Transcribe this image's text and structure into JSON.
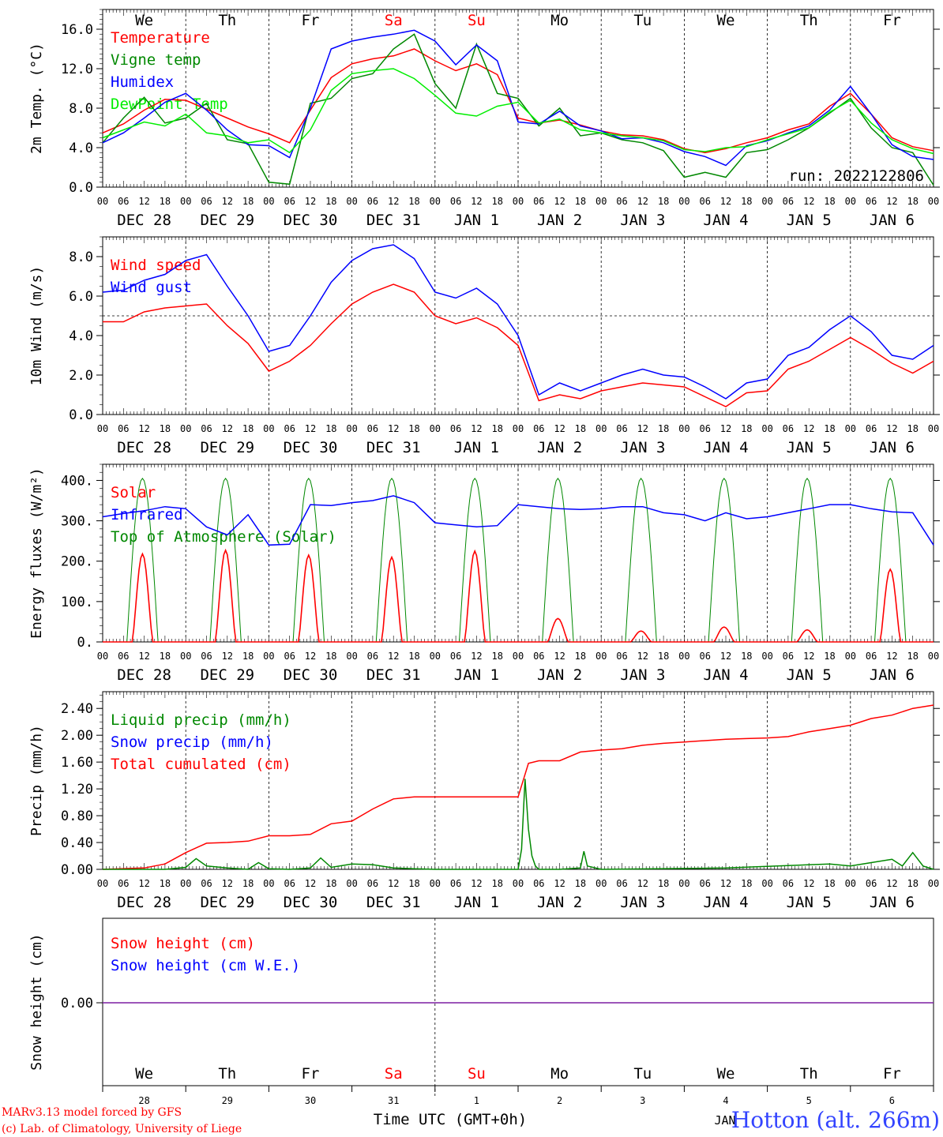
{
  "chart_data": [
    {
      "type": "line",
      "ylabel": "2m Temp. (°C)",
      "yticks": [
        "16.0",
        "12.0",
        "8.0",
        "4.0",
        "0.0"
      ],
      "ylim": [
        0,
        18
      ],
      "xlim": [
        0,
        240
      ],
      "x_unit": "hours since 2022-12-28 00 UTC",
      "day_names": [
        "We",
        "Th",
        "Fr",
        "Sa",
        "Su",
        "Mo",
        "Tu",
        "We",
        "Th",
        "Fr"
      ],
      "day_name_colors": [
        "#000000",
        "#000000",
        "#000000",
        "#ff0000",
        "#ff0000",
        "#000000",
        "#000000",
        "#000000",
        "#000000",
        "#000000"
      ],
      "date_labels": [
        "DEC 28",
        "DEC 29",
        "DEC 30",
        "DEC 31",
        "JAN  1",
        "JAN  2",
        "JAN  3",
        "JAN  4",
        "JAN  5",
        "JAN  6"
      ],
      "hour_labels": [
        "00",
        "06",
        "12",
        "18"
      ],
      "annotation": "run: 2022122806",
      "legend": [
        {
          "label": "Temperature",
          "color": "#ff0000"
        },
        {
          "label": "Vigne temp",
          "color": "#008800"
        },
        {
          "label": "Humidex",
          "color": "#0000ff"
        },
        {
          "label": "DewPoint Temp",
          "color": "#00ee00"
        }
      ],
      "series": [
        {
          "name": "Temperature",
          "color": "#ff0000",
          "x": [
            0,
            6,
            12,
            18,
            24,
            30,
            36,
            42,
            48,
            54,
            60,
            66,
            72,
            78,
            84,
            90,
            96,
            102,
            108,
            114,
            120,
            126,
            132,
            138,
            144,
            150,
            156,
            162,
            168,
            174,
            180,
            186,
            192,
            198,
            204,
            210,
            216,
            222,
            228,
            234,
            240
          ],
          "y": [
            5.5,
            6.4,
            7.8,
            8.9,
            8.8,
            7.9,
            7.0,
            6.1,
            5.4,
            4.5,
            7.8,
            11.1,
            12.5,
            13.0,
            13.3,
            14.0,
            12.8,
            11.8,
            12.5,
            11.4,
            7.0,
            6.5,
            6.8,
            6.3,
            5.7,
            5.3,
            5.2,
            4.8,
            3.9,
            3.5,
            3.9,
            4.5,
            5.0,
            5.8,
            6.4,
            8.2,
            9.5,
            7.4,
            5.0,
            4.1,
            3.7
          ]
        },
        {
          "name": "Vigne temp",
          "color": "#008800",
          "x": [
            0,
            6,
            12,
            18,
            24,
            30,
            36,
            42,
            48,
            54,
            60,
            66,
            72,
            78,
            84,
            90,
            96,
            102,
            108,
            114,
            120,
            126,
            132,
            138,
            144,
            150,
            156,
            162,
            168,
            174,
            180,
            186,
            192,
            198,
            204,
            210,
            216,
            222,
            228,
            234,
            240
          ],
          "y": [
            4.5,
            7.0,
            9.1,
            6.5,
            7.0,
            8.5,
            4.8,
            4.4,
            0.5,
            0.3,
            8.5,
            9.0,
            11.0,
            11.5,
            14.0,
            15.5,
            10.5,
            8.0,
            14.5,
            9.5,
            9.0,
            6.2,
            8.0,
            5.2,
            5.5,
            4.8,
            4.5,
            3.7,
            1.0,
            1.5,
            1.0,
            3.5,
            3.8,
            4.8,
            6.0,
            7.5,
            9.0,
            6.0,
            4.0,
            3.5,
            0.2
          ]
        },
        {
          "name": "Humidex",
          "color": "#0000ff",
          "x": [
            0,
            6,
            12,
            18,
            24,
            30,
            36,
            42,
            48,
            54,
            60,
            66,
            72,
            78,
            84,
            90,
            96,
            102,
            108,
            114,
            120,
            126,
            132,
            138,
            144,
            150,
            156,
            162,
            168,
            174,
            180,
            186,
            192,
            198,
            204,
            210,
            216,
            222,
            228,
            234,
            240
          ],
          "y": [
            4.5,
            5.5,
            7.0,
            8.6,
            9.5,
            7.8,
            5.8,
            4.3,
            4.2,
            3.0,
            8.0,
            14.0,
            14.8,
            15.2,
            15.5,
            15.9,
            14.8,
            12.4,
            14.4,
            12.8,
            6.6,
            6.4,
            7.7,
            6.2,
            5.7,
            4.9,
            5.0,
            4.5,
            3.6,
            3.1,
            2.2,
            4.2,
            4.7,
            5.5,
            6.2,
            7.8,
            10.2,
            7.4,
            4.3,
            3.1,
            2.8
          ]
        },
        {
          "name": "DewPoint Temp",
          "color": "#00ee00",
          "x": [
            0,
            6,
            12,
            18,
            24,
            30,
            36,
            42,
            48,
            54,
            60,
            66,
            72,
            78,
            84,
            90,
            96,
            102,
            108,
            114,
            120,
            126,
            132,
            138,
            144,
            150,
            156,
            162,
            168,
            174,
            180,
            186,
            192,
            198,
            204,
            210,
            216,
            222,
            228,
            234,
            240
          ],
          "y": [
            5.0,
            5.8,
            6.6,
            6.2,
            7.4,
            5.5,
            5.2,
            4.5,
            4.8,
            3.5,
            5.8,
            9.8,
            11.5,
            11.8,
            12.0,
            11.0,
            9.3,
            7.5,
            7.2,
            8.2,
            8.6,
            6.5,
            6.9,
            5.8,
            5.5,
            5.2,
            5.0,
            4.7,
            3.8,
            3.6,
            4.0,
            4.1,
            4.8,
            5.4,
            6.0,
            7.6,
            8.8,
            6.5,
            4.8,
            3.9,
            3.4
          ]
        }
      ]
    },
    {
      "type": "line",
      "ylabel": "10m Wind (m/s)",
      "yticks": [
        "8.0",
        "6.0",
        "4.0",
        "2.0",
        "0.0"
      ],
      "ylim": [
        0,
        9
      ],
      "xlim": [
        0,
        240
      ],
      "reference_line": 5,
      "date_labels": [
        "DEC 28",
        "DEC 29",
        "DEC 30",
        "DEC 31",
        "JAN  1",
        "JAN  2",
        "JAN  3",
        "JAN  4",
        "JAN  5",
        "JAN  6"
      ],
      "legend": [
        {
          "label": "Wind speed",
          "color": "#ff0000"
        },
        {
          "label": "Wind gust",
          "color": "#0000ff"
        }
      ],
      "series": [
        {
          "name": "Wind speed",
          "color": "#ff0000",
          "x": [
            0,
            6,
            12,
            18,
            24,
            30,
            36,
            42,
            48,
            54,
            60,
            66,
            72,
            78,
            84,
            90,
            96,
            102,
            108,
            114,
            120,
            126,
            132,
            138,
            144,
            150,
            156,
            162,
            168,
            174,
            180,
            186,
            192,
            198,
            204,
            210,
            216,
            222,
            228,
            234,
            240
          ],
          "y": [
            4.7,
            4.7,
            5.2,
            5.4,
            5.5,
            5.6,
            4.5,
            3.6,
            2.2,
            2.7,
            3.5,
            4.6,
            5.6,
            6.2,
            6.6,
            6.2,
            5.0,
            4.6,
            4.9,
            4.4,
            3.5,
            0.7,
            1.0,
            0.8,
            1.2,
            1.4,
            1.6,
            1.5,
            1.4,
            0.9,
            0.4,
            1.1,
            1.2,
            2.3,
            2.7,
            3.3,
            3.9,
            3.3,
            2.6,
            2.1,
            2.7
          ]
        },
        {
          "name": "Wind gust",
          "color": "#0000ff",
          "x": [
            0,
            6,
            12,
            18,
            24,
            30,
            36,
            42,
            48,
            54,
            60,
            66,
            72,
            78,
            84,
            90,
            96,
            102,
            108,
            114,
            120,
            126,
            132,
            138,
            144,
            150,
            156,
            162,
            168,
            174,
            180,
            186,
            192,
            198,
            204,
            210,
            216,
            222,
            228,
            234,
            240
          ],
          "y": [
            6.2,
            6.3,
            6.8,
            7.1,
            7.8,
            8.1,
            6.5,
            5.0,
            3.2,
            3.5,
            5.0,
            6.7,
            7.8,
            8.4,
            8.6,
            7.9,
            6.2,
            5.9,
            6.4,
            5.6,
            4.0,
            1.0,
            1.6,
            1.2,
            1.6,
            2.0,
            2.3,
            2.0,
            1.9,
            1.4,
            0.8,
            1.6,
            1.8,
            3.0,
            3.4,
            4.3,
            5.0,
            4.2,
            3.0,
            2.8,
            3.5
          ]
        }
      ]
    },
    {
      "type": "line",
      "ylabel": "Energy fluxes (W/m²)",
      "yticks": [
        "400.",
        "300.",
        "200.",
        "100.",
        "0."
      ],
      "ylim": [
        0,
        440
      ],
      "xlim": [
        0,
        240
      ],
      "date_labels": [
        "DEC 28",
        "DEC 29",
        "DEC 30",
        "DEC 31",
        "JAN  1",
        "JAN  2",
        "JAN  3",
        "JAN  4",
        "JAN  5",
        "JAN  6"
      ],
      "legend": [
        {
          "label": "Solar",
          "color": "#ff0000"
        },
        {
          "label": "Infrared",
          "color": "#0000ff"
        },
        {
          "label": "Top of Atmosphere (Solar)",
          "color": "#008800"
        }
      ],
      "solar_peaks": [
        218,
        227,
        215,
        210,
        225,
        58,
        27,
        37,
        30,
        180
      ],
      "toa_peak": 405,
      "series": [
        {
          "name": "Infrared",
          "color": "#0000ff",
          "x": [
            0,
            6,
            12,
            18,
            24,
            30,
            36,
            42,
            48,
            54,
            60,
            66,
            72,
            78,
            84,
            90,
            96,
            102,
            108,
            114,
            120,
            126,
            132,
            138,
            144,
            150,
            156,
            162,
            168,
            174,
            180,
            186,
            192,
            198,
            204,
            210,
            216,
            222,
            228,
            234,
            240
          ],
          "y": [
            310,
            318,
            325,
            335,
            330,
            285,
            265,
            315,
            240,
            242,
            340,
            338,
            345,
            350,
            362,
            345,
            295,
            290,
            285,
            288,
            340,
            335,
            330,
            328,
            330,
            335,
            335,
            320,
            315,
            300,
            320,
            305,
            310,
            320,
            330,
            340,
            340,
            330,
            322,
            320,
            240
          ]
        }
      ]
    },
    {
      "type": "line",
      "ylabel": "Precip (mm/h)",
      "yticks": [
        "2.40",
        "2.00",
        "1.60",
        "1.20",
        "0.80",
        "0.40",
        "0.00"
      ],
      "ylim": [
        0,
        2.65
      ],
      "xlim": [
        0,
        240
      ],
      "date_labels": [
        "DEC 28",
        "DEC 29",
        "DEC 30",
        "DEC 31",
        "JAN  1",
        "JAN  2",
        "JAN  3",
        "JAN  4",
        "JAN  5",
        "JAN  6"
      ],
      "legend": [
        {
          "label": "Liquid precip (mm/h)",
          "color": "#008800"
        },
        {
          "label": "Snow precip (mm/h)",
          "color": "#0000ff"
        },
        {
          "label": "Total cumulated (cm)",
          "color": "#ff0000"
        }
      ],
      "series": [
        {
          "name": "Total cumulated (cm)",
          "color": "#ff0000",
          "x": [
            0,
            12,
            18,
            24,
            30,
            36,
            42,
            48,
            54,
            60,
            66,
            72,
            78,
            84,
            90,
            96,
            102,
            108,
            114,
            120,
            123,
            126,
            132,
            138,
            144,
            150,
            156,
            162,
            168,
            174,
            180,
            186,
            192,
            198,
            204,
            210,
            216,
            222,
            228,
            234,
            240
          ],
          "y": [
            0,
            0.02,
            0.08,
            0.25,
            0.39,
            0.4,
            0.42,
            0.5,
            0.5,
            0.52,
            0.68,
            0.72,
            0.9,
            1.05,
            1.08,
            1.08,
            1.08,
            1.08,
            1.08,
            1.08,
            1.58,
            1.62,
            1.62,
            1.75,
            1.78,
            1.8,
            1.85,
            1.88,
            1.9,
            1.92,
            1.94,
            1.95,
            1.96,
            1.98,
            2.05,
            2.1,
            2.15,
            2.25,
            2.3,
            2.4,
            2.45
          ]
        },
        {
          "name": "Liquid precip (mm/h)",
          "color": "#008800",
          "x": [
            0,
            18,
            24,
            27,
            30,
            36,
            42,
            45,
            48,
            54,
            60,
            63,
            66,
            72,
            78,
            84,
            90,
            96,
            120,
            121,
            122,
            123,
            124,
            125,
            126,
            132,
            138,
            139,
            140,
            144,
            180,
            210,
            216,
            222,
            228,
            231,
            234,
            237,
            240
          ],
          "y": [
            0,
            0,
            0.03,
            0.16,
            0.05,
            0.02,
            0.0,
            0.1,
            0.01,
            0,
            0.02,
            0.17,
            0.03,
            0.08,
            0.07,
            0.02,
            0.01,
            0,
            0,
            0.3,
            1.35,
            0.6,
            0.2,
            0.05,
            0,
            0,
            0.02,
            0.27,
            0.05,
            0,
            0.02,
            0.08,
            0.05,
            0.1,
            0.15,
            0.05,
            0.25,
            0.05,
            0
          ]
        }
      ]
    },
    {
      "type": "line",
      "ylabel": "Snow height (cm)",
      "yticks": [
        "0.00"
      ],
      "legend": [
        {
          "label": "Snow height (cm)",
          "color": "#ff0000"
        },
        {
          "label": "Snow height (cm W.E.)",
          "color": "#0000ff"
        }
      ],
      "series": [
        {
          "name": "Snow height (cm)",
          "color": "#7b1fa2",
          "x": [
            0,
            240
          ],
          "y": [
            0,
            0
          ]
        }
      ],
      "day_names": [
        "We",
        "Th",
        "Fr",
        "Sa",
        "Su",
        "Mo",
        "Tu",
        "We",
        "Th",
        "Fr"
      ],
      "day_numbers": [
        "28",
        "29",
        "30",
        "31",
        "1",
        "2",
        "3",
        "4",
        "5",
        "6"
      ],
      "month_label": "JAN",
      "xlabel": "Time UTC (GMT+0h)"
    }
  ],
  "footer": {
    "credit_line1": "MARv3.13 model forced by GFS",
    "credit_line2": "(c) Lab. of Climatology, University of Liege",
    "station": "Hotton (alt. 266m)"
  }
}
